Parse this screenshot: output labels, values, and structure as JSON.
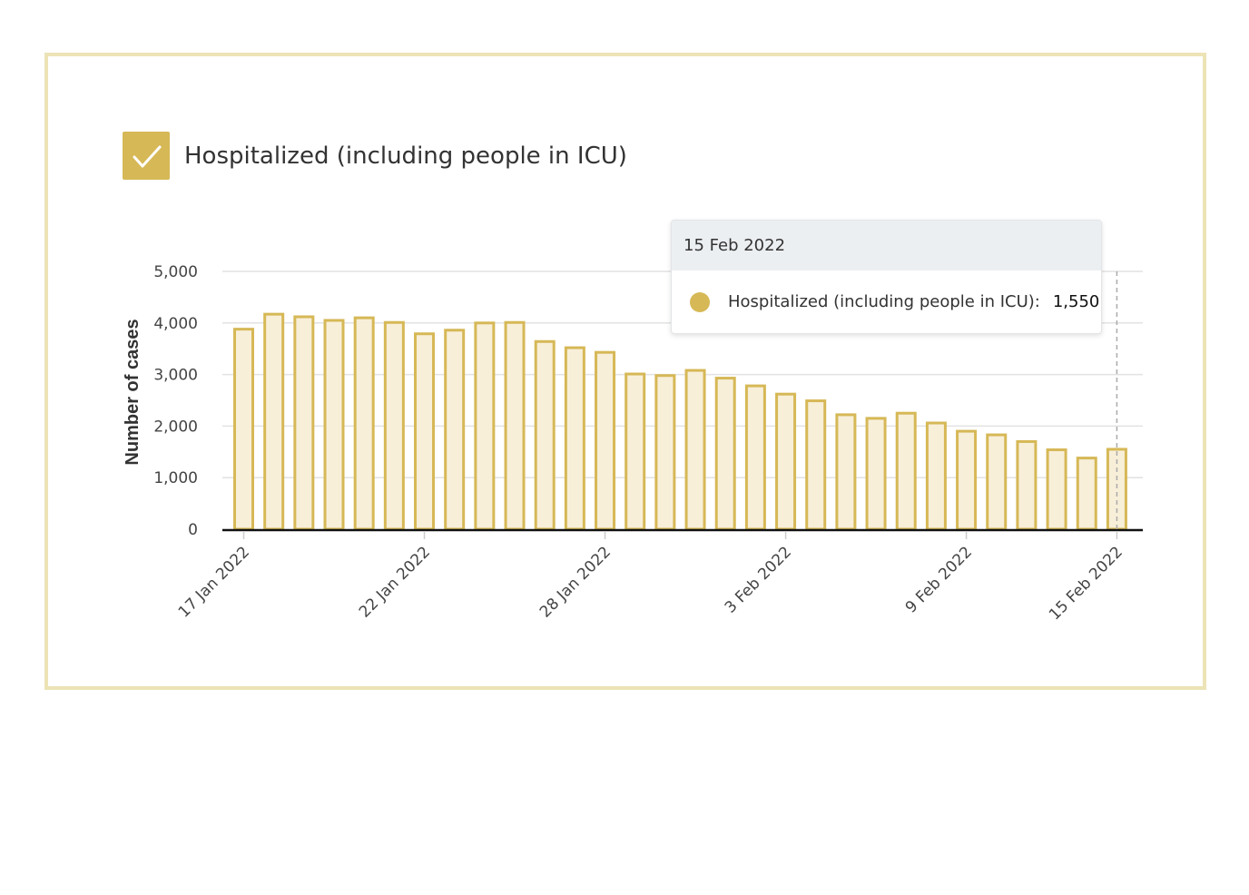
{
  "legend": {
    "label": "Hospitalized (including people in ICU)",
    "checked": true,
    "color": "#d6b856"
  },
  "tooltip": {
    "date": "15 Feb 2022",
    "series_label": "Hospitalized (including people in ICU):",
    "value": "1,550"
  },
  "colors": {
    "bar_stroke": "#d6b856",
    "bar_fill": "#f8efd9",
    "frame": "#ece3b6",
    "grid": "#e2e2e2"
  },
  "chart_data": {
    "type": "bar",
    "title": "",
    "xlabel": "",
    "ylabel": "Number of cases",
    "ylim": [
      0,
      5000
    ],
    "yticks": [
      0,
      1000,
      2000,
      3000,
      4000,
      5000
    ],
    "ytick_labels": [
      "0",
      "1,000",
      "2,000",
      "3,000",
      "4,000",
      "5,000"
    ],
    "xtick_labels": [
      {
        "index": 0,
        "label": "17 Jan 2022"
      },
      {
        "index": 6,
        "label": "22 Jan 2022"
      },
      {
        "index": 12,
        "label": "28 Jan 2022"
      },
      {
        "index": 18,
        "label": "3 Feb 2022"
      },
      {
        "index": 24,
        "label": "9 Feb 2022"
      },
      {
        "index": 29,
        "label": "15 Feb 2022"
      }
    ],
    "series": [
      {
        "name": "Hospitalized (including people in ICU)",
        "values": [
          3880,
          4170,
          4120,
          4050,
          4100,
          4010,
          3790,
          3860,
          4000,
          4010,
          3640,
          3520,
          3430,
          3010,
          2980,
          3080,
          2930,
          2780,
          2620,
          2490,
          2220,
          2150,
          2250,
          2060,
          1900,
          1830,
          1700,
          1540,
          1380,
          1550
        ]
      }
    ],
    "highlighted_index": 29
  }
}
